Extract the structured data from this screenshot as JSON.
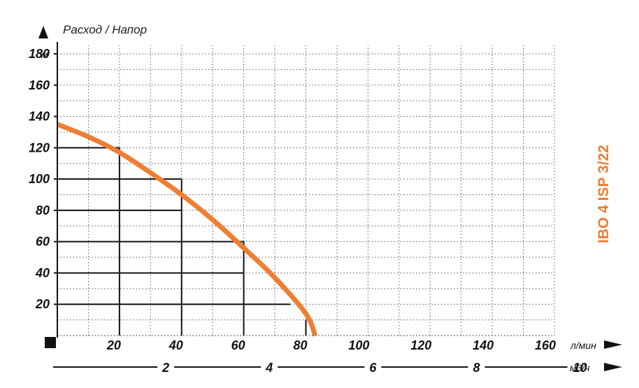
{
  "colors": {
    "curve": "#ee7e33",
    "grid": "#555555",
    "text": "#111111",
    "model": "#ee7e33"
  },
  "chart_data": {
    "type": "line",
    "title": "Расход / Напор",
    "model_label": "IBO 4 ISP 3/22",
    "y_axis": {
      "unit": "м",
      "ylim": [
        0,
        180
      ],
      "ticks": [
        20,
        40,
        60,
        80,
        100,
        120,
        140,
        160,
        180
      ]
    },
    "x_axis": {
      "unit": "л/мин",
      "xlim": [
        0,
        160
      ],
      "ticks": [
        20,
        40,
        60,
        80,
        100,
        120,
        140,
        160
      ]
    },
    "x2_axis": {
      "unit": "м3/ч",
      "ticks": [
        2,
        4,
        6,
        8,
        10
      ]
    },
    "grid": true,
    "series": [
      {
        "x": [
          0,
          10,
          20,
          30,
          40,
          50,
          60,
          70,
          80,
          83
        ],
        "y": [
          135,
          127,
          117,
          104,
          90,
          74,
          56,
          37,
          14,
          0
        ]
      }
    ],
    "operating_points": [
      {
        "x": 20,
        "y": 120
      },
      {
        "x": 40,
        "y": 100
      },
      {
        "x": 40,
        "y": 80
      },
      {
        "x": 60,
        "y": 60
      },
      {
        "x": 60,
        "y": 40
      },
      {
        "x": 75,
        "y": 20
      }
    ]
  }
}
